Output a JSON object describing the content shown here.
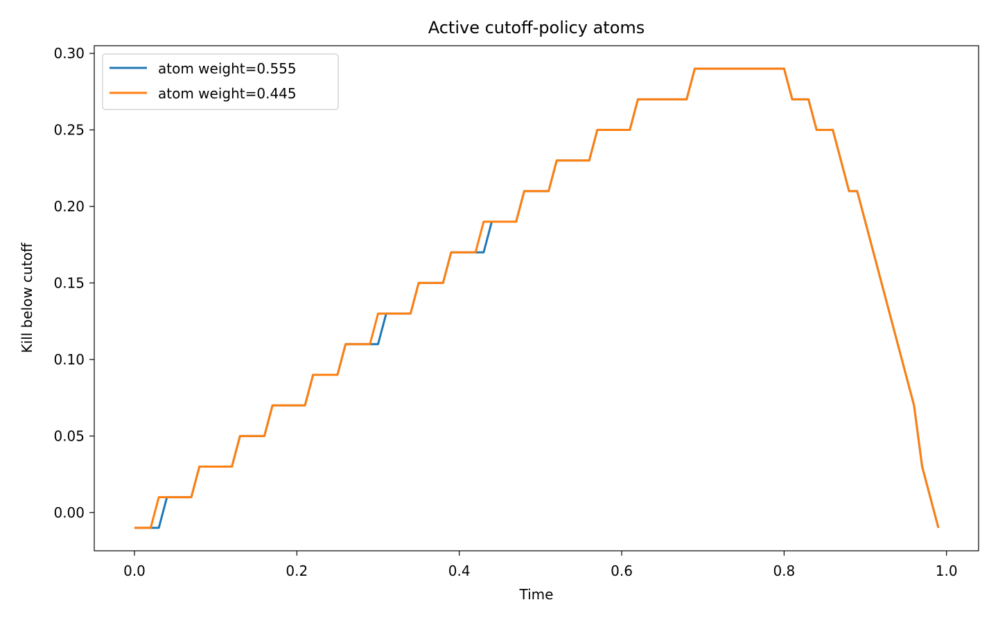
{
  "chart_data": {
    "type": "line",
    "title": "Active cutoff-policy atoms",
    "xlabel": "Time",
    "ylabel": "Kill below cutoff",
    "xlim": [
      -0.0495,
      1.0395
    ],
    "ylim": [
      -0.025,
      0.305
    ],
    "xticks": [
      0.0,
      0.2,
      0.4,
      0.6,
      0.8,
      1.0
    ],
    "xtick_labels": [
      "0.0",
      "0.2",
      "0.4",
      "0.6",
      "0.8",
      "1.0"
    ],
    "yticks": [
      0.0,
      0.05,
      0.1,
      0.15,
      0.2,
      0.25,
      0.3
    ],
    "ytick_labels": [
      "0.00",
      "0.05",
      "0.10",
      "0.15",
      "0.20",
      "0.25",
      "0.30"
    ],
    "grid": false,
    "legend_position": "upper-left",
    "series": [
      {
        "name": "atom weight=0.555",
        "color": "#1f77b4",
        "points": [
          [
            0.0,
            -0.01
          ],
          [
            0.03,
            -0.01
          ],
          [
            0.04,
            0.01
          ],
          [
            0.07,
            0.01
          ],
          [
            0.08,
            0.03
          ],
          [
            0.12,
            0.03
          ],
          [
            0.13,
            0.05
          ],
          [
            0.16,
            0.05
          ],
          [
            0.17,
            0.07
          ],
          [
            0.21,
            0.07
          ],
          [
            0.22,
            0.09
          ],
          [
            0.25,
            0.09
          ],
          [
            0.26,
            0.11
          ],
          [
            0.3,
            0.11
          ],
          [
            0.31,
            0.13
          ],
          [
            0.34,
            0.13
          ],
          [
            0.35,
            0.15
          ],
          [
            0.38,
            0.15
          ],
          [
            0.39,
            0.17
          ],
          [
            0.43,
            0.17
          ],
          [
            0.44,
            0.19
          ],
          [
            0.47,
            0.19
          ],
          [
            0.48,
            0.21
          ],
          [
            0.51,
            0.21
          ],
          [
            0.52,
            0.23
          ],
          [
            0.56,
            0.23
          ],
          [
            0.57,
            0.25
          ],
          [
            0.61,
            0.25
          ],
          [
            0.62,
            0.27
          ],
          [
            0.68,
            0.27
          ],
          [
            0.69,
            0.29
          ],
          [
            0.8,
            0.29
          ],
          [
            0.81,
            0.27
          ],
          [
            0.83,
            0.27
          ],
          [
            0.84,
            0.25
          ],
          [
            0.86,
            0.25
          ],
          [
            0.88,
            0.21
          ],
          [
            0.89,
            0.21
          ],
          [
            0.96,
            0.07
          ],
          [
            0.97,
            0.03
          ],
          [
            0.99,
            -0.01
          ]
        ]
      },
      {
        "name": "atom weight=0.445",
        "color": "#ff7f0e",
        "points": [
          [
            0.0,
            -0.01
          ],
          [
            0.02,
            -0.01
          ],
          [
            0.03,
            0.01
          ],
          [
            0.07,
            0.01
          ],
          [
            0.08,
            0.03
          ],
          [
            0.12,
            0.03
          ],
          [
            0.13,
            0.05
          ],
          [
            0.16,
            0.05
          ],
          [
            0.17,
            0.07
          ],
          [
            0.21,
            0.07
          ],
          [
            0.22,
            0.09
          ],
          [
            0.25,
            0.09
          ],
          [
            0.26,
            0.11
          ],
          [
            0.29,
            0.11
          ],
          [
            0.3,
            0.13
          ],
          [
            0.34,
            0.13
          ],
          [
            0.35,
            0.15
          ],
          [
            0.38,
            0.15
          ],
          [
            0.39,
            0.17
          ],
          [
            0.42,
            0.17
          ],
          [
            0.43,
            0.19
          ],
          [
            0.47,
            0.19
          ],
          [
            0.48,
            0.21
          ],
          [
            0.51,
            0.21
          ],
          [
            0.52,
            0.23
          ],
          [
            0.56,
            0.23
          ],
          [
            0.57,
            0.25
          ],
          [
            0.61,
            0.25
          ],
          [
            0.62,
            0.27
          ],
          [
            0.68,
            0.27
          ],
          [
            0.69,
            0.29
          ],
          [
            0.8,
            0.29
          ],
          [
            0.81,
            0.27
          ],
          [
            0.83,
            0.27
          ],
          [
            0.84,
            0.25
          ],
          [
            0.86,
            0.25
          ],
          [
            0.88,
            0.21
          ],
          [
            0.89,
            0.21
          ],
          [
            0.96,
            0.07
          ],
          [
            0.97,
            0.03
          ],
          [
            0.99,
            -0.01
          ]
        ]
      }
    ]
  }
}
